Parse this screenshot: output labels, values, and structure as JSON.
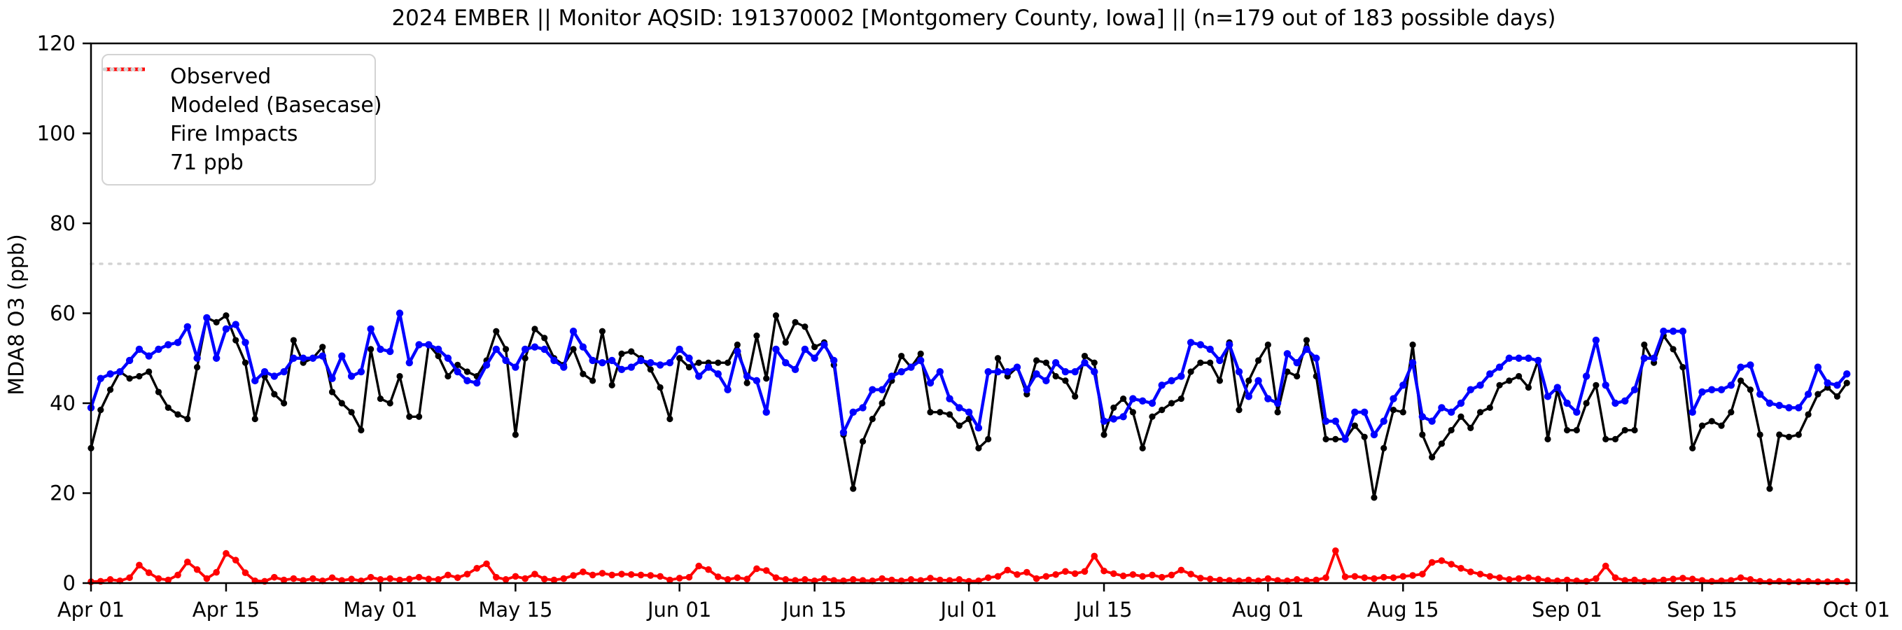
{
  "title": "2024 EMBER || Monitor AQSID: 191370002 [Montgomery County, Iowa] || (n=179 out of 183 possible days)",
  "legend": {
    "items": [
      {
        "label": "Observed",
        "color": "#000000",
        "style": "solid"
      },
      {
        "label": "Modeled (Basecase)",
        "color": "#0000ff",
        "style": "solid"
      },
      {
        "label": "Fire Impacts",
        "color": "#ff0000",
        "style": "solid"
      },
      {
        "label": "71 ppb",
        "color": "#d3d3d3",
        "style": "dotted"
      }
    ]
  },
  "chart_data": {
    "type": "line",
    "title": "2024 EMBER || Monitor AQSID: 191370002 [Montgomery County, Iowa] || (n=179 out of 183 possible days)",
    "xlabel": "",
    "ylabel": "MDA8 O3 (ppb)",
    "ylim": [
      0,
      120
    ],
    "yticks": [
      0,
      20,
      40,
      60,
      80,
      100,
      120
    ],
    "grid": false,
    "legend_position": "upper-left",
    "threshold": {
      "label": "71 ppb",
      "value": 71,
      "color": "#d3d3d3",
      "style": "dotted"
    },
    "n_days": 183,
    "x_start": "Apr 01",
    "x_end": "Sep 30",
    "xticks": [
      {
        "day": 0,
        "label": "Apr 01"
      },
      {
        "day": 14,
        "label": "Apr 15"
      },
      {
        "day": 30,
        "label": "May 01"
      },
      {
        "day": 44,
        "label": "May 15"
      },
      {
        "day": 61,
        "label": "Jun 01"
      },
      {
        "day": 75,
        "label": "Jun 15"
      },
      {
        "day": 91,
        "label": "Jul 01"
      },
      {
        "day": 105,
        "label": "Jul 15"
      },
      {
        "day": 122,
        "label": "Aug 01"
      },
      {
        "day": 136,
        "label": "Aug 15"
      },
      {
        "day": 153,
        "label": "Sep 01"
      },
      {
        "day": 167,
        "label": "Sep 15"
      },
      {
        "day": 183,
        "label": "Oct 01"
      }
    ],
    "series": [
      {
        "name": "Observed",
        "color": "#000000",
        "marker_radius": 4.6,
        "line_width": 3.4,
        "values": [
          30,
          38.5,
          43,
          47,
          45.5,
          46,
          47,
          42.5,
          39,
          37.5,
          36.5,
          48,
          59,
          58,
          59.5,
          54,
          49,
          36.5,
          46,
          42,
          40,
          54,
          49,
          50,
          52.5,
          42.5,
          40,
          38,
          34,
          52,
          41,
          40,
          46,
          37,
          37,
          53,
          50.5,
          46,
          48.5,
          47,
          46,
          49.5,
          56,
          52,
          33,
          50,
          56.5,
          54.5,
          50,
          48.5,
          52,
          46.5,
          45,
          56,
          44,
          51,
          51.5,
          50,
          47.5,
          43.5,
          36.5,
          50,
          48,
          49,
          49,
          49,
          49,
          53,
          44.5,
          55,
          45.5,
          59.5,
          53.5,
          58,
          57,
          52.5,
          53.5,
          48.5,
          33,
          21,
          31.5,
          36.5,
          40,
          45,
          50.5,
          48,
          51,
          38,
          38,
          37.5,
          35,
          36.5,
          30,
          32,
          50,
          46,
          48,
          42,
          49.5,
          49,
          46,
          45,
          41.5,
          50.5,
          49,
          33,
          39,
          41,
          38,
          30,
          37,
          38.5,
          40,
          41,
          47,
          49,
          49,
          45,
          53.5,
          38.5,
          45,
          49.5,
          53,
          38,
          47,
          46,
          54,
          46,
          32,
          32,
          32,
          35,
          32.5,
          19,
          30,
          38.5,
          38,
          53,
          33,
          28,
          31,
          34,
          37,
          34.5,
          38,
          39,
          44,
          45,
          46,
          43.5,
          49.5,
          32,
          43,
          34,
          34,
          40,
          44,
          32,
          32,
          34,
          34,
          53,
          49,
          55,
          52,
          48,
          30,
          35,
          36,
          35,
          38,
          45,
          43,
          33,
          21,
          33,
          32.5,
          33,
          37.5,
          42,
          43.5,
          41.5,
          44.5
        ]
      },
      {
        "name": "Modeled (Basecase)",
        "color": "#0000ff",
        "marker_radius": 5.2,
        "line_width": 4.4,
        "values": [
          39,
          45.5,
          46.5,
          47,
          49.5,
          52,
          50.5,
          52,
          53,
          53.5,
          57,
          50,
          59,
          50,
          56.5,
          57.5,
          53.5,
          45,
          47,
          46,
          47,
          50,
          50,
          50,
          50.5,
          45.5,
          50.5,
          46,
          47,
          56.5,
          52,
          51.5,
          60,
          49,
          53,
          53,
          52,
          50,
          47,
          45,
          44.5,
          48.5,
          52,
          49.5,
          48,
          52,
          52.5,
          52,
          49.5,
          48,
          56,
          52.5,
          49.5,
          49,
          49.5,
          47.5,
          48,
          49.5,
          49,
          48.5,
          49,
          52,
          50,
          46,
          48,
          46.5,
          43,
          51.5,
          46,
          45,
          38,
          52,
          49,
          47.5,
          52,
          50,
          53,
          49.5,
          33.5,
          38,
          39,
          43,
          43,
          46,
          47,
          48,
          49.5,
          44.5,
          47,
          41,
          39,
          38,
          34.5,
          47,
          47,
          47,
          48,
          43,
          46.5,
          45,
          49,
          47,
          47,
          49,
          47,
          36,
          36.5,
          37,
          41,
          40.5,
          40,
          44,
          45,
          46,
          53.5,
          53,
          52,
          49.5,
          53,
          47,
          41.5,
          45,
          41,
          40,
          51,
          49,
          52,
          50,
          36,
          36,
          32,
          38,
          38,
          33,
          36,
          41,
          44,
          49,
          37,
          36,
          39,
          38,
          40,
          43,
          44,
          46.5,
          48,
          50,
          50,
          50,
          49.5,
          41.5,
          43.5,
          40,
          38,
          46,
          54,
          44,
          40,
          40.5,
          43,
          50,
          50,
          56,
          56,
          56,
          38,
          42.5,
          43,
          43,
          44,
          48,
          48.5,
          42,
          40,
          39.5,
          39,
          39,
          42,
          48,
          44.5,
          44,
          46.5
        ]
      },
      {
        "name": "Fire Impacts",
        "color": "#ff0000",
        "marker_radius": 4.8,
        "line_width": 3.8,
        "values": [
          0.3,
          0.4,
          0.8,
          0.5,
          1.2,
          4,
          2.3,
          1,
          0.7,
          1.8,
          4.7,
          3,
          1,
          2.4,
          6.6,
          5.1,
          2.3,
          0.5,
          0.4,
          1.3,
          0.7,
          1,
          0.6,
          1,
          0.5,
          1.2,
          0.6,
          0.9,
          0.5,
          1.3,
          0.8,
          1,
          0.7,
          0.9,
          1.3,
          0.9,
          0.8,
          1.8,
          1.2,
          2,
          3.3,
          4.3,
          1.3,
          0.8,
          1.5,
          1,
          2,
          0.9,
          0.7,
          1,
          1.7,
          2.5,
          1.8,
          2.2,
          1.8,
          2,
          1.9,
          1.8,
          1.7,
          1.5,
          0.7,
          1.1,
          1.3,
          3.8,
          3,
          1.4,
          0.8,
          1.2,
          0.9,
          3.2,
          2.8,
          1.2,
          0.8,
          0.6,
          0.8,
          0.5,
          1,
          0.6,
          0.5,
          0.8,
          0.6,
          0.5,
          1,
          0.7,
          0.5,
          0.8,
          0.6,
          1.1,
          0.7,
          0.6,
          0.8,
          0.4,
          0.5,
          1.2,
          1.5,
          2.9,
          1.9,
          2.4,
          1,
          1.5,
          1.9,
          2.6,
          2.1,
          2.6,
          6,
          2.7,
          2.1,
          1.6,
          1.9,
          1.5,
          1.8,
          1.3,
          1.8,
          2.9,
          2,
          1.1,
          0.9,
          0.7,
          0.6,
          0.5,
          0.7,
          0.5,
          1,
          0.6,
          0.5,
          0.8,
          0.6,
          0.7,
          1.2,
          7.2,
          1.4,
          1.5,
          1.2,
          1,
          1.3,
          1.2,
          1.5,
          1.7,
          2,
          4.6,
          5,
          4.2,
          3.3,
          2.5,
          2,
          1.5,
          1.2,
          0.8,
          1,
          1.2,
          0.9,
          0.6,
          0.5,
          0.7,
          0.5,
          0.4,
          1,
          3.8,
          1.2,
          0.6,
          0.7,
          0.4,
          0.5,
          0.7,
          0.9,
          1.1,
          0.9,
          0.6,
          0.4,
          0.5,
          0.6,
          1.2,
          0.8,
          0.4,
          0.3,
          0.4,
          0.3,
          0.3,
          0.4,
          0.3,
          0.3,
          0.4,
          0.3
        ]
      }
    ]
  }
}
